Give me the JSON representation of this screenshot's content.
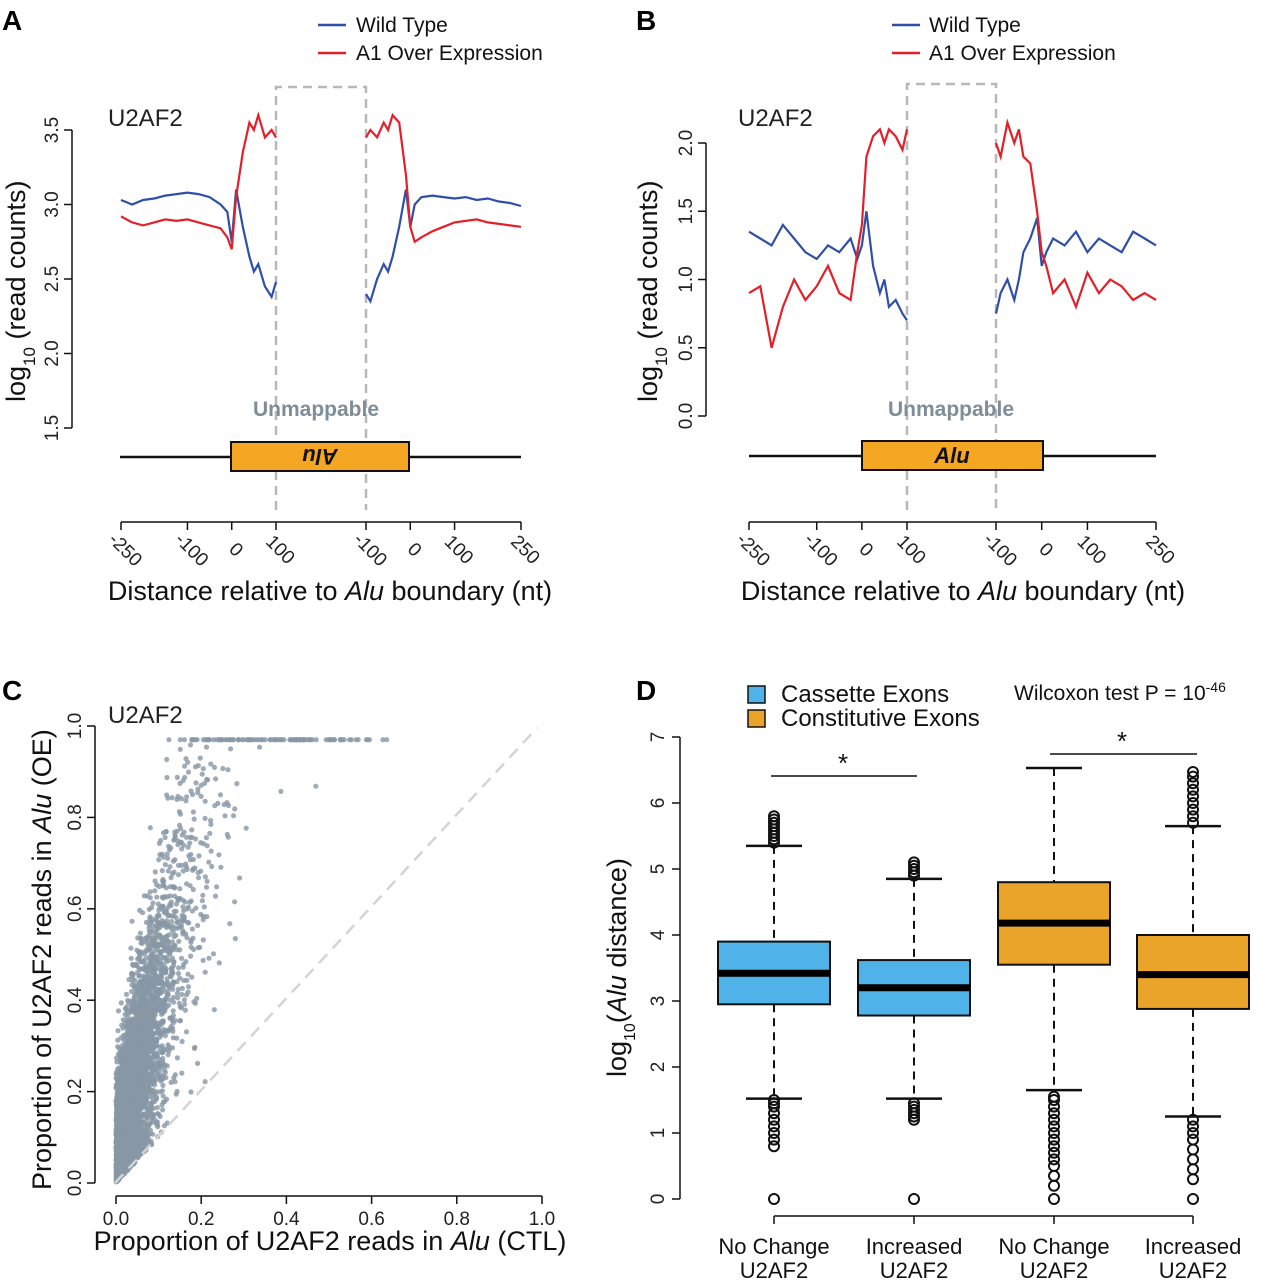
{
  "panels": {
    "a": {
      "letter": "A",
      "gene": "U2AF2",
      "legend": [
        "Wild Type",
        "A1 Over Expression"
      ],
      "unmappable": "Unmappable",
      "alu_label": "Alu",
      "ylabel_prefix": "log",
      "ylabel_sub": "10",
      "ylabel_rest": " (read counts)",
      "xlabel_pre": "Distance relative to ",
      "xlabel_italic": "Alu",
      "xlabel_post": " boundary (nt)"
    },
    "b": {
      "letter": "B",
      "gene": "U2AF2",
      "legend": [
        "Wild Type",
        "A1 Over Expression"
      ],
      "unmappable": "Unmappable",
      "alu_label": "Alu",
      "ylabel_prefix": "log",
      "ylabel_sub": "10",
      "ylabel_rest": " (read counts)",
      "xlabel_pre": "Distance relative to ",
      "xlabel_italic": "Alu",
      "xlabel_post": " boundary (nt)"
    },
    "c": {
      "letter": "C",
      "gene": "U2AF2",
      "ylabel_pre": "Proportion of U2AF2 reads in ",
      "ylabel_italic": "Alu",
      "ylabel_post": " (OE)",
      "xlabel_pre": "Proportion of U2AF2 reads in ",
      "xlabel_italic": "Alu",
      "xlabel_post": " (CTL)"
    },
    "d": {
      "letter": "D",
      "legend": [
        "Cassette Exons",
        "Constitutive Exons"
      ],
      "wilcoxon_pre": "Wilcoxon test P = 10",
      "wilcoxon_exp": "-46",
      "star": "*",
      "ylabel_prefix": "log",
      "ylabel_sub": "10",
      "ylabel_open": "(",
      "ylabel_italic": "Alu",
      "ylabel_post": " distance)",
      "cat_line1": [
        "No Change",
        "Increased",
        "No Change",
        "Increased"
      ],
      "cat_line2": [
        "U2AF2",
        "U2AF2",
        "U2AF2",
        "U2AF2"
      ]
    }
  },
  "colors": {
    "wild_type": "#2f4fa8",
    "over_expression": "#e3202a",
    "cassette": "#4fb2e8",
    "constitutive": "#eba42a",
    "alu_box": "#f5a623",
    "scatter": "#8797a5",
    "dashed": "#b8b8b8"
  },
  "chart_data": [
    {
      "type": "line",
      "title": "U2AF2",
      "xlabel": "Distance relative to Alu boundary (nt)",
      "ylabel": "log10 (read counts)",
      "ylim": [
        1.5,
        3.5
      ],
      "yticks": [
        1.5,
        2.0,
        2.5,
        3.0,
        3.5
      ],
      "xtick_labels": [
        "-250",
        "-100",
        "0",
        "100",
        "-100",
        "0",
        "100",
        "250"
      ],
      "segments": [
        "left: -250..100 from Alu start",
        "right: -100..250 from Alu end"
      ],
      "alu_orientation": "reverse",
      "series": [
        {
          "name": "Wild Type",
          "left_x": [
            -250,
            -225,
            -200,
            -175,
            -150,
            -125,
            -100,
            -75,
            -50,
            -25,
            -10,
            0,
            10,
            25,
            40,
            50,
            60,
            75,
            90,
            100
          ],
          "left_y": [
            3.03,
            3.0,
            3.03,
            3.04,
            3.06,
            3.07,
            3.08,
            3.07,
            3.05,
            3.0,
            2.95,
            2.75,
            3.1,
            2.85,
            2.65,
            2.55,
            2.6,
            2.45,
            2.38,
            2.48
          ],
          "right_x": [
            -100,
            -90,
            -75,
            -60,
            -50,
            -40,
            -25,
            -10,
            0,
            10,
            25,
            50,
            75,
            100,
            125,
            150,
            175,
            200,
            225,
            250
          ],
          "right_y": [
            2.4,
            2.35,
            2.5,
            2.6,
            2.55,
            2.65,
            2.85,
            3.1,
            2.85,
            3.0,
            3.05,
            3.06,
            3.05,
            3.04,
            3.05,
            3.03,
            3.04,
            3.02,
            3.01,
            2.99
          ]
        },
        {
          "name": "A1 Over Expression",
          "left_x": [
            -250,
            -225,
            -200,
            -175,
            -150,
            -125,
            -100,
            -75,
            -50,
            -25,
            -10,
            0,
            10,
            25,
            40,
            50,
            60,
            75,
            90,
            100
          ],
          "left_y": [
            2.92,
            2.88,
            2.86,
            2.88,
            2.9,
            2.89,
            2.9,
            2.88,
            2.86,
            2.84,
            2.78,
            2.7,
            3.05,
            3.35,
            3.55,
            3.5,
            3.6,
            3.45,
            3.5,
            3.45
          ],
          "right_x": [
            -100,
            -90,
            -75,
            -60,
            -50,
            -40,
            -25,
            -10,
            0,
            10,
            25,
            50,
            75,
            100,
            125,
            150,
            175,
            200,
            225,
            250
          ],
          "right_y": [
            3.45,
            3.5,
            3.45,
            3.55,
            3.5,
            3.6,
            3.55,
            3.2,
            2.85,
            2.75,
            2.78,
            2.82,
            2.85,
            2.88,
            2.89,
            2.9,
            2.88,
            2.87,
            2.86,
            2.85
          ]
        }
      ]
    },
    {
      "type": "line",
      "title": "U2AF2",
      "xlabel": "Distance relative to Alu boundary (nt)",
      "ylabel": "log10 (read counts)",
      "ylim": [
        0.0,
        2.0
      ],
      "yticks": [
        0.0,
        0.5,
        1.0,
        1.5,
        2.0
      ],
      "xtick_labels": [
        "-250",
        "-100",
        "0",
        "100",
        "-100",
        "0",
        "100",
        "250"
      ],
      "alu_orientation": "forward",
      "series": [
        {
          "name": "Wild Type",
          "left_x": [
            -250,
            -225,
            -200,
            -175,
            -150,
            -125,
            -100,
            -75,
            -50,
            -25,
            -10,
            0,
            10,
            25,
            40,
            50,
            60,
            75,
            90,
            100
          ],
          "left_y": [
            1.35,
            1.3,
            1.25,
            1.4,
            1.3,
            1.2,
            1.15,
            1.25,
            1.2,
            1.3,
            1.15,
            1.25,
            1.5,
            1.1,
            0.9,
            1.0,
            0.8,
            0.85,
            0.75,
            0.7
          ],
          "right_x": [
            -100,
            -90,
            -75,
            -60,
            -50,
            -40,
            -25,
            -10,
            0,
            10,
            25,
            50,
            75,
            100,
            125,
            150,
            175,
            200,
            225,
            250
          ],
          "right_y": [
            0.75,
            0.9,
            1.0,
            0.85,
            1.0,
            1.2,
            1.3,
            1.45,
            1.1,
            1.2,
            1.3,
            1.25,
            1.35,
            1.2,
            1.3,
            1.25,
            1.2,
            1.35,
            1.3,
            1.25
          ]
        },
        {
          "name": "A1 Over Expression",
          "left_x": [
            -250,
            -225,
            -200,
            -175,
            -150,
            -125,
            -100,
            -75,
            -50,
            -25,
            -10,
            0,
            10,
            25,
            40,
            50,
            60,
            75,
            90,
            100
          ],
          "left_y": [
            0.9,
            0.95,
            0.5,
            0.8,
            1.0,
            0.85,
            0.95,
            1.1,
            0.9,
            0.85,
            1.2,
            1.4,
            1.9,
            2.05,
            2.1,
            2.0,
            2.1,
            2.05,
            1.95,
            2.1
          ],
          "right_x": [
            -100,
            -90,
            -75,
            -60,
            -50,
            -40,
            -25,
            -10,
            0,
            10,
            25,
            50,
            75,
            100,
            125,
            150,
            175,
            200,
            225,
            250
          ],
          "right_y": [
            2.0,
            1.9,
            2.15,
            2.0,
            2.1,
            1.9,
            1.85,
            1.5,
            1.2,
            1.1,
            0.9,
            1.0,
            0.8,
            1.05,
            0.9,
            1.0,
            0.95,
            0.85,
            0.9,
            0.85
          ]
        }
      ]
    },
    {
      "type": "scatter",
      "title": "U2AF2",
      "xlabel": "Proportion of U2AF2 reads in Alu (CTL)",
      "ylabel": "Proportion of U2AF2 reads in Alu (OE)",
      "xlim": [
        0.0,
        1.0
      ],
      "ylim": [
        0.0,
        1.0
      ],
      "xticks": [
        0.0,
        0.2,
        0.4,
        0.6,
        0.8,
        1.0
      ],
      "yticks": [
        0.0,
        0.2,
        0.4,
        0.6,
        0.8,
        1.0
      ],
      "reference_line": "y = x (dashed)",
      "point_cloud": {
        "approx_points": 4000,
        "x_center": 0.05,
        "y_trend": "y ≈ 0.1 + 3.0x, saturating near 1.0",
        "notes": "dense cluster near origin, spread upward above diagonal"
      }
    },
    {
      "type": "box",
      "ylabel": "log10(Alu distance)",
      "ylim": [
        0,
        7
      ],
      "yticks": [
        0,
        1,
        2,
        3,
        4,
        5,
        6,
        7
      ],
      "categories": [
        "No Change U2AF2",
        "Increased U2AF2",
        "No Change U2AF2",
        "Increased U2AF2"
      ],
      "groups": [
        "Cassette Exons",
        "Cassette Exons",
        "Constitutive Exons",
        "Constitutive Exons"
      ],
      "boxes": [
        {
          "q1": 2.95,
          "median": 3.42,
          "q3": 3.9,
          "whisker_low": 1.52,
          "whisker_high": 5.35,
          "outliers_low": [
            0.0,
            0.8,
            0.9,
            1.0,
            1.1,
            1.2,
            1.3,
            1.4,
            1.45,
            1.5
          ],
          "outliers_high": [
            5.4,
            5.45,
            5.5,
            5.55,
            5.6,
            5.65,
            5.7,
            5.75,
            5.8
          ]
        },
        {
          "q1": 2.78,
          "median": 3.2,
          "q3": 3.62,
          "whisker_low": 1.52,
          "whisker_high": 4.85,
          "outliers_low": [
            0.0,
            1.2,
            1.25,
            1.3,
            1.35,
            1.4,
            1.45
          ],
          "outliers_high": [
            4.9,
            4.95,
            5.0,
            5.05,
            5.1
          ]
        },
        {
          "q1": 3.55,
          "median": 4.18,
          "q3": 4.8,
          "whisker_low": 1.65,
          "whisker_high": 6.53,
          "outliers_low": [
            0.0,
            0.2,
            0.35,
            0.5,
            0.6,
            0.7,
            0.8,
            0.9,
            1.0,
            1.1,
            1.2,
            1.3,
            1.4,
            1.5,
            1.55
          ],
          "outliers_high": []
        },
        {
          "q1": 2.88,
          "median": 3.4,
          "q3": 4.0,
          "whisker_low": 1.25,
          "whisker_high": 5.65,
          "outliers_low": [
            0.0,
            0.3,
            0.45,
            0.6,
            0.75,
            0.9,
            1.0,
            1.1,
            1.2
          ],
          "outliers_high": [
            5.7,
            5.8,
            5.9,
            6.0,
            6.1,
            6.2,
            6.3,
            6.4,
            6.47
          ]
        }
      ],
      "significance": [
        [
          "No Change U2AF2",
          "Increased U2AF2",
          "*"
        ],
        [
          "No Change U2AF2",
          "Increased U2AF2",
          "*"
        ]
      ],
      "annotation": "Wilcoxon test P = 10^-46"
    }
  ]
}
